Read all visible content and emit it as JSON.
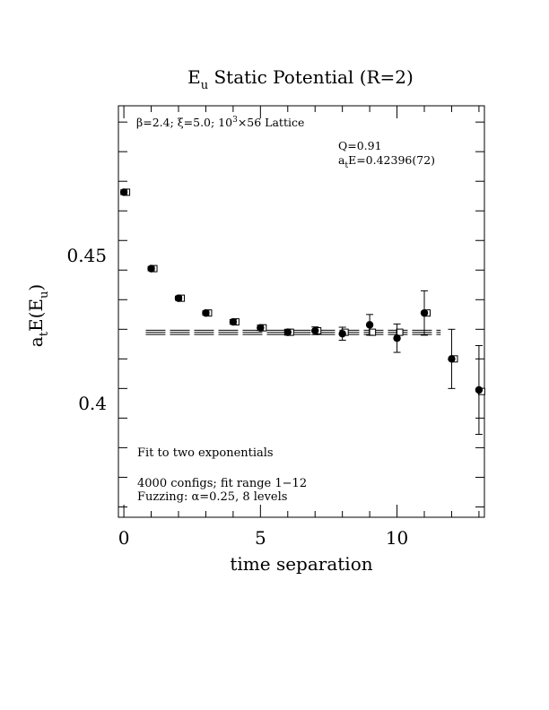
{
  "chart_data": {
    "type": "scatter",
    "title_main": "E",
    "title_sub": "u",
    "title_rest": " Static Potential (R=2)",
    "xlabel": "time separation",
    "ylabel_a": "a",
    "ylabel_t": "t",
    "ylabel_mid": "E(E",
    "ylabel_u": "u",
    "ylabel_end": ")",
    "xlim": [
      -0.2,
      13.2
    ],
    "ylim": [
      0.3615,
      0.5005
    ],
    "x_ticks": [
      0,
      5,
      10
    ],
    "x_tick_labels": [
      "0",
      "5",
      "10"
    ],
    "y_ticks": [
      0.4,
      0.45
    ],
    "y_tick_labels": [
      "0.4",
      "0.45"
    ],
    "annotations": {
      "lattice_beta": "β=2.4; ξ=5.0; 10",
      "lattice_exp": "3",
      "lattice_rest": "×56 Lattice",
      "q_value": "Q=0.91",
      "energy_a": "a",
      "energy_t": "t",
      "energy_rest": "E=0.42396(72)",
      "fit_type": "Fit to two exponentials",
      "configs": "4000 configs; fit range 1−12",
      "fuzzing": "Fuzzing: α=0.25, 8 levels"
    },
    "fit": {
      "center": 0.42396,
      "error": 0.00072,
      "x_range": [
        0.8,
        11.6
      ]
    },
    "data_points": [
      {
        "t": 0,
        "y": 0.4713,
        "err": 0.0008
      },
      {
        "t": 1,
        "y": 0.4455,
        "err": 0.0007
      },
      {
        "t": 2,
        "y": 0.4355,
        "err": 0.0007
      },
      {
        "t": 3,
        "y": 0.4305,
        "err": 0.0007
      },
      {
        "t": 4,
        "y": 0.4275,
        "err": 0.0008
      },
      {
        "t": 5,
        "y": 0.4255,
        "err": 0.0009
      },
      {
        "t": 6,
        "y": 0.424,
        "err": 0.001
      },
      {
        "t": 7,
        "y": 0.4245,
        "err": 0.0013
      },
      {
        "t": 8,
        "y": 0.4235,
        "err": 0.0022
      },
      {
        "t": 9,
        "y": 0.4265,
        "err": 0.0035
      },
      {
        "t": 10,
        "y": 0.422,
        "err": 0.0048
      },
      {
        "t": 11,
        "y": 0.4305,
        "err": 0.0075
      },
      {
        "t": 12,
        "y": 0.415,
        "err": 0.01
      },
      {
        "t": 13,
        "y": 0.4045,
        "err": 0.015
      }
    ],
    "fit_points": [
      {
        "t": 0,
        "y": 0.4713,
        "err": 0.0006
      },
      {
        "t": 1,
        "y": 0.4455,
        "err": 0.0006
      },
      {
        "t": 2,
        "y": 0.4355,
        "err": 0.0006
      },
      {
        "t": 3,
        "y": 0.4305,
        "err": 0.0006
      },
      {
        "t": 4,
        "y": 0.4275,
        "err": 0.0006
      },
      {
        "t": 5,
        "y": 0.4255,
        "err": 0.0006
      },
      {
        "t": 6,
        "y": 0.424,
        "err": 0.0006
      },
      {
        "t": 7,
        "y": 0.4245,
        "err": 0.0006
      },
      {
        "t": 8,
        "y": 0.424,
        "err": 0.0006
      },
      {
        "t": 9,
        "y": 0.424,
        "err": 0.0006
      },
      {
        "t": 10,
        "y": 0.424,
        "err": 0.0006
      },
      {
        "t": 11,
        "y": 0.4305,
        "err": 0.0006
      },
      {
        "t": 12,
        "y": 0.415,
        "err": 0.0006
      },
      {
        "t": 13,
        "y": 0.404,
        "err": 0.0006
      }
    ]
  }
}
